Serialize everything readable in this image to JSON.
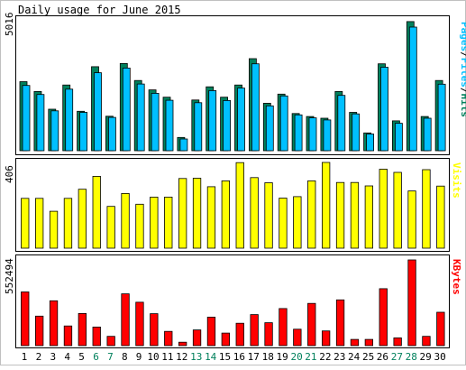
{
  "title": "Daily usage for June 2015",
  "colors": {
    "hits": "#00805c",
    "files": "#00c0ff",
    "visits": "#ffff00",
    "kbytes": "#ff0000",
    "weekend": "#00805c",
    "text": "#000000"
  },
  "chart_data": [
    {
      "type": "bar",
      "name": "pages-files-hits",
      "title": "Daily usage for June 2015",
      "legend": [
        "Pages",
        "/",
        "Files",
        "/",
        "Hits"
      ],
      "max_label": "5016",
      "ylim": [
        0,
        5016
      ],
      "categories": [
        "1",
        "2",
        "3",
        "4",
        "5",
        "6",
        "7",
        "8",
        "9",
        "10",
        "11",
        "12",
        "13",
        "14",
        "15",
        "16",
        "17",
        "18",
        "19",
        "20",
        "21",
        "22",
        "23",
        "24",
        "25",
        "26",
        "27",
        "28",
        "29",
        "30"
      ],
      "weekend_days": [
        "6",
        "7",
        "13",
        "14",
        "20",
        "21",
        "27",
        "28"
      ],
      "series": [
        {
          "name": "Hits",
          "values": [
            2645,
            2270,
            1590,
            2520,
            1510,
            3220,
            1320,
            3340,
            2690,
            2330,
            2050,
            507,
            1945,
            2450,
            2050,
            2520,
            3530,
            1820,
            2170,
            1425,
            1310,
            1245,
            2270,
            1470,
            680,
            3330,
            1145,
            4950,
            1310,
            2690
          ]
        },
        {
          "name": "Files",
          "values": [
            2500,
            2155,
            1530,
            2360,
            1470,
            2990,
            1275,
            3170,
            2555,
            2200,
            1935,
            450,
            1840,
            2305,
            1925,
            2400,
            3330,
            1720,
            2100,
            1375,
            1260,
            1180,
            2120,
            1410,
            640,
            3200,
            1050,
            4740,
            1245,
            2550
          ]
        },
        {
          "name": "Pages",
          "values": [
            0,
            0,
            0,
            0,
            0,
            0,
            0,
            0,
            0,
            0,
            0,
            0,
            0,
            0,
            0,
            0,
            0,
            0,
            0,
            0,
            0,
            0,
            0,
            0,
            0,
            0,
            0,
            0,
            0,
            0
          ]
        }
      ]
    },
    {
      "type": "bar",
      "name": "visits",
      "legend": [
        "Visits"
      ],
      "max_label": "406",
      "ylim": [
        0,
        406
      ],
      "categories": [
        "1",
        "2",
        "3",
        "4",
        "5",
        "6",
        "7",
        "8",
        "9",
        "10",
        "11",
        "12",
        "13",
        "14",
        "15",
        "16",
        "17",
        "18",
        "19",
        "20",
        "21",
        "22",
        "23",
        "24",
        "25",
        "26",
        "27",
        "28",
        "29",
        "30"
      ],
      "series": [
        {
          "name": "Visits",
          "values": [
            236,
            236,
            175,
            236,
            279,
            340,
            198,
            259,
            208,
            242,
            242,
            330,
            331,
            291,
            319,
            405,
            334,
            310,
            237,
            244,
            319,
            406,
            311,
            311,
            295,
            374,
            359,
            271,
            372,
            294
          ]
        }
      ]
    },
    {
      "type": "bar",
      "name": "kbytes",
      "legend": [
        "KBytes"
      ],
      "max_label": "552494",
      "ylim": [
        0,
        552494
      ],
      "categories": [
        "1",
        "2",
        "3",
        "4",
        "5",
        "6",
        "7",
        "8",
        "9",
        "10",
        "11",
        "12",
        "13",
        "14",
        "15",
        "16",
        "17",
        "18",
        "19",
        "20",
        "21",
        "22",
        "23",
        "24",
        "25",
        "26",
        "27",
        "28",
        "29",
        "30"
      ],
      "series": [
        {
          "name": "KBytes",
          "values": [
            346000,
            190000,
            289000,
            127000,
            207000,
            120000,
            60000,
            334000,
            280000,
            206000,
            92000,
            22000,
            101000,
            184000,
            81000,
            144000,
            200000,
            148000,
            239000,
            106000,
            272000,
            95000,
            295000,
            40000,
            40000,
            367000,
            50000,
            552494,
            60000,
            215000
          ]
        }
      ]
    }
  ],
  "x_axis": {
    "labels": [
      "1",
      "2",
      "3",
      "4",
      "5",
      "6",
      "7",
      "8",
      "9",
      "10",
      "11",
      "12",
      "13",
      "14",
      "15",
      "16",
      "17",
      "18",
      "19",
      "20",
      "21",
      "22",
      "23",
      "24",
      "25",
      "26",
      "27",
      "28",
      "29",
      "30"
    ]
  }
}
